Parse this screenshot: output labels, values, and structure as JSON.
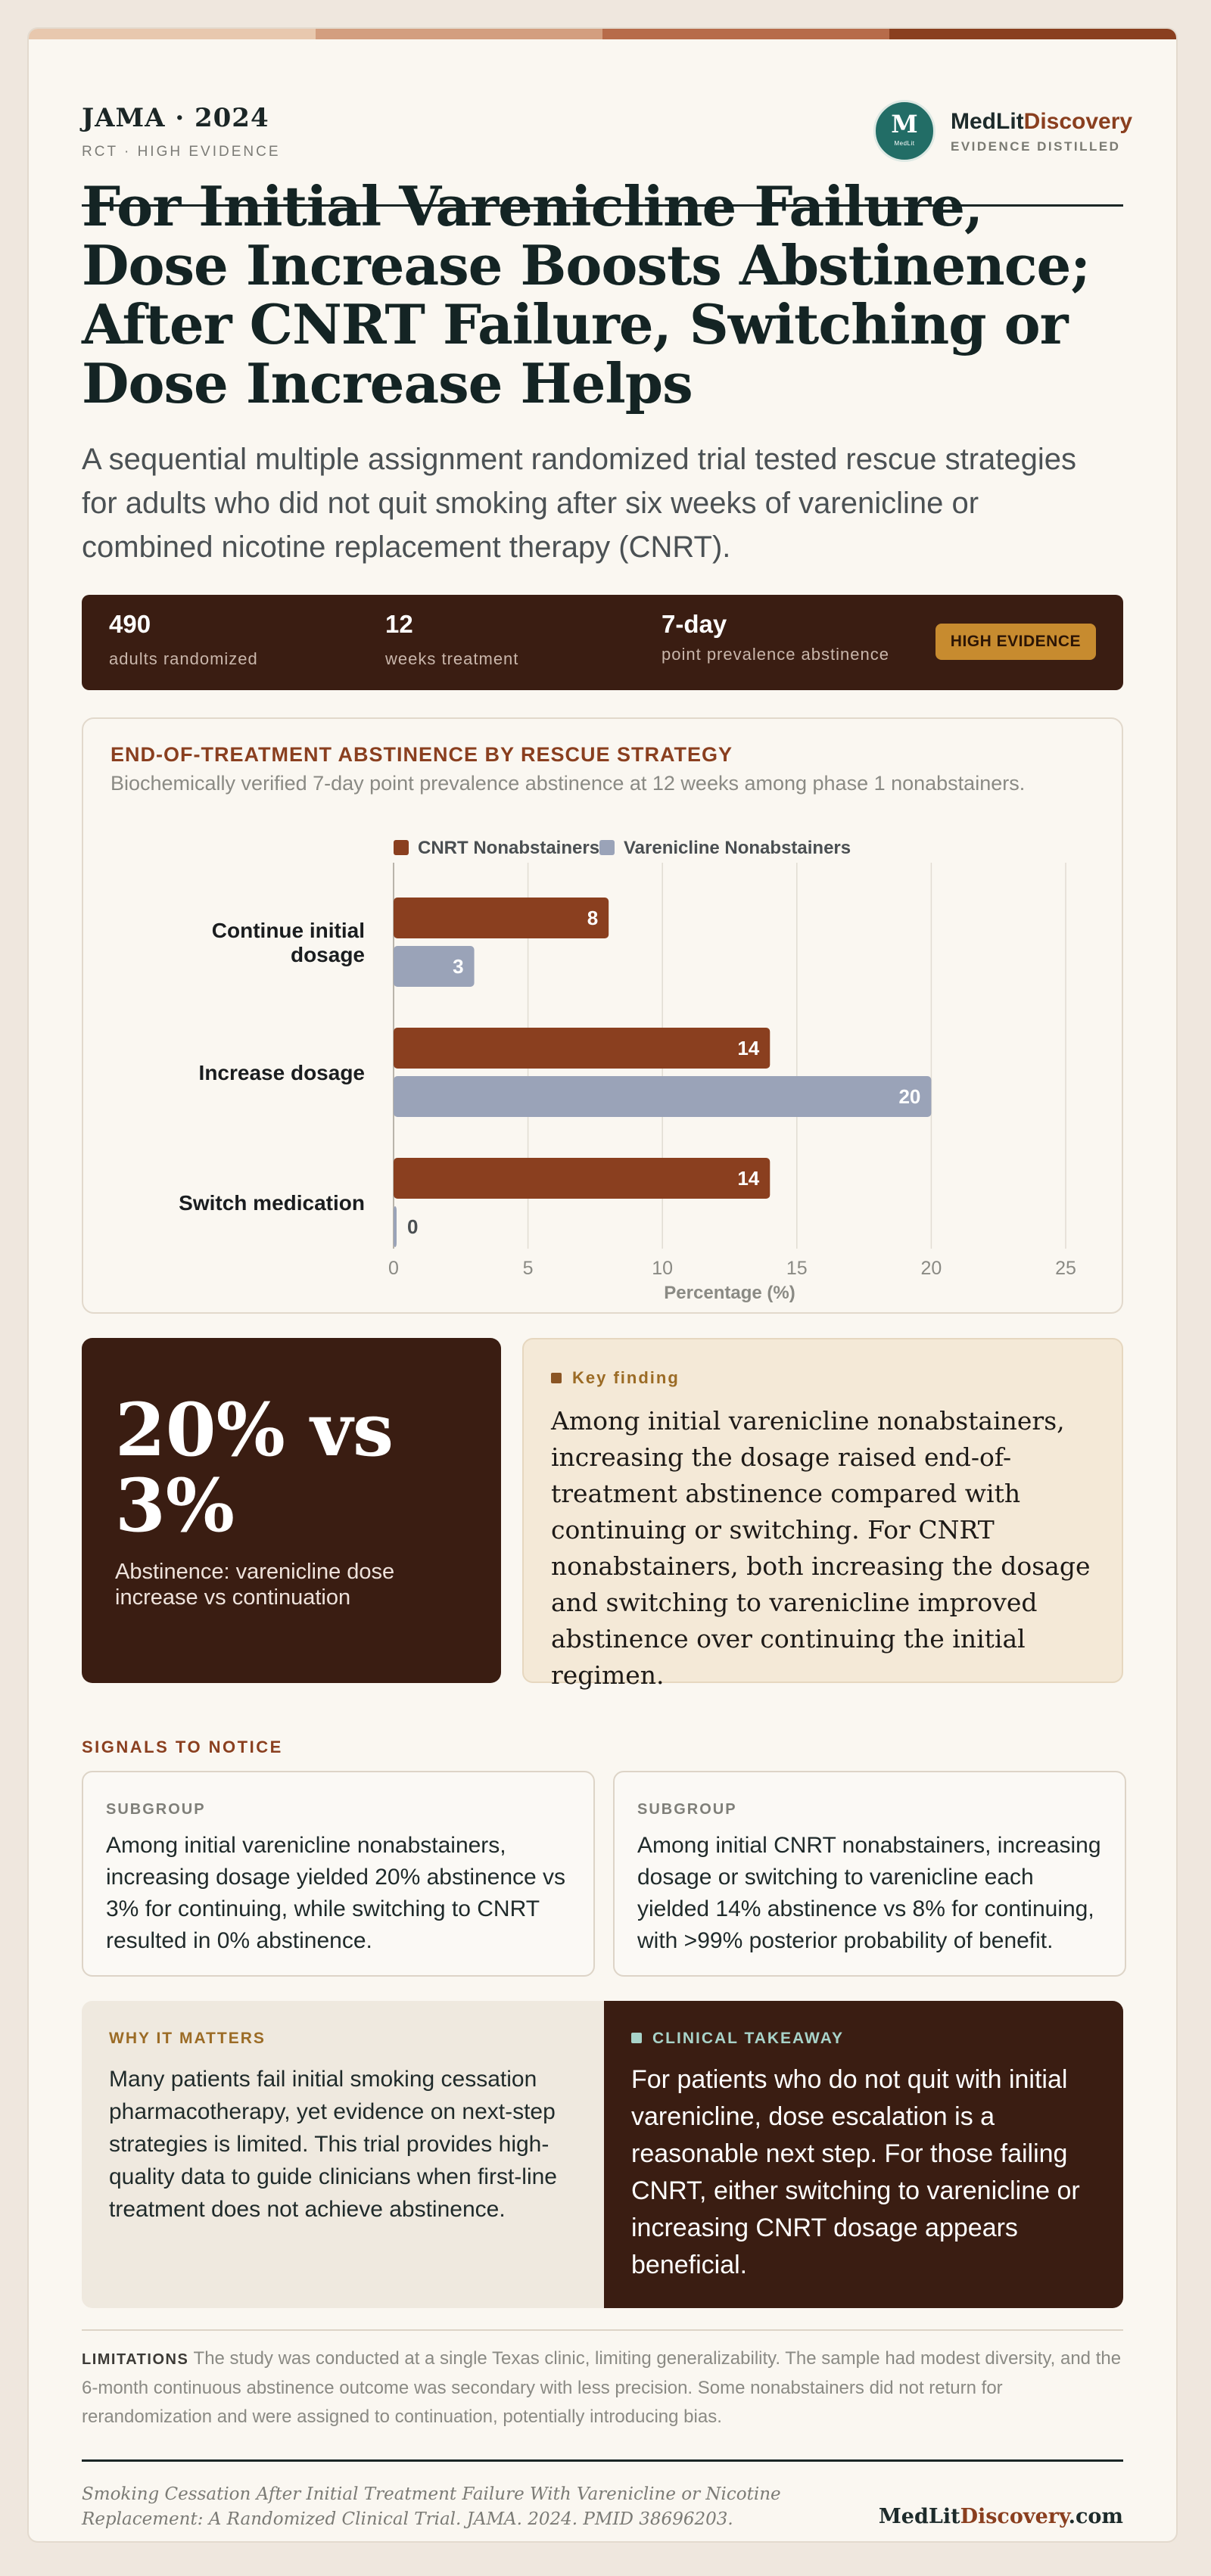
{
  "colors": {
    "stripe": [
      "#e8c8ae",
      "#d39e7f",
      "#b76b4a",
      "#8a3f1f"
    ],
    "cnrt": "#8a3f1f",
    "varenicline": "#9aa3b8",
    "dark": "#3a1d12"
  },
  "header": {
    "journal": "JAMA · 2024",
    "subtitle": "RCT · HIGH EVIDENCE",
    "brand_logo_letter": "M",
    "brand_logo_mini": "MedLit",
    "brand_name_a": "MedLit",
    "brand_name_b": "Discovery",
    "brand_tag": "EVIDENCE DISTILLED"
  },
  "headline": "For Initial Varenicline Failure, Dose Increase Boosts Abstinence; After CNRT Failure, Switching or Dose Increase Helps",
  "lede": "A sequential multiple assignment randomized trial tested rescue strategies for adults who did not quit smoking after six weeks of varenicline or combined nicotine replacement therapy (CNRT).",
  "stats": [
    {
      "value": "490",
      "label": "adults randomized"
    },
    {
      "value": "12",
      "label": "weeks treatment"
    },
    {
      "value": "7-day",
      "label": "point prevalence abstinence"
    }
  ],
  "badge": "HIGH EVIDENCE",
  "chart_card": {
    "title": "END-OF-TREATMENT ABSTINENCE BY RESCUE STRATEGY",
    "subtitle": "Biochemically verified 7-day point prevalence abstinence at 12 weeks among phase 1 nonabstainers."
  },
  "chart_data": {
    "type": "bar",
    "orientation": "horizontal",
    "categories": [
      "Continue initial dosage",
      "Increase dosage",
      "Switch medication"
    ],
    "series": [
      {
        "name": "CNRT Nonabstainers",
        "values": [
          8,
          14,
          14
        ]
      },
      {
        "name": "Varenicline Nonabstainers",
        "values": [
          3,
          20,
          0
        ]
      }
    ],
    "xlabel": "Percentage (%)",
    "xlim": [
      0,
      25
    ],
    "ticks": [
      0,
      5,
      10,
      15,
      20,
      25
    ],
    "grid": true,
    "legend": "top"
  },
  "highlight": {
    "value": "20% vs 3%",
    "caption": "Abstinence: varenicline dose increase vs continuation"
  },
  "key_finding": {
    "label": "Key finding",
    "text": "Among initial varenicline nonabstainers, increasing the dosage raised end-of-treatment abstinence compared with continuing or switching. For CNRT nonabstainers, both increasing the dosage and switching to varenicline improved abstinence over continuing the initial regimen."
  },
  "signals": {
    "heading": "SIGNALS TO NOTICE",
    "items": [
      {
        "label": "SUBGROUP",
        "text": "Among initial varenicline nonabstainers, increasing dosage yielded 20% abstinence vs 3% for continuing, while switching to CNRT resulted in 0% abstinence."
      },
      {
        "label": "SUBGROUP",
        "text": "Among initial CNRT nonabstainers, increasing dosage or switching to varenicline each yielded 14% abstinence vs 8% for continuing, with >99% posterior probability of benefit."
      }
    ]
  },
  "why": {
    "label": "WHY IT MATTERS",
    "text": "Many patients fail initial smoking cessation pharmacotherapy, yet evidence on next-step strategies is limited. This trial provides high-quality data to guide clinicians when first-line treatment does not achieve abstinence."
  },
  "takeaway": {
    "label": "CLINICAL TAKEAWAY",
    "text": "For patients who do not quit with initial varenicline, dose escalation is a reasonable next step. For those failing CNRT, either switching to varenicline or increasing CNRT dosage appears beneficial."
  },
  "limitations": {
    "label": "LIMITATIONS",
    "text": "The study was conducted at a single Texas clinic, limiting generalizability. The sample had modest diversity, and the 6-month continuous abstinence outcome was secondary with less precision. Some nonabstainers did not return for rerandomization and were assigned to continuation, potentially introducing bias."
  },
  "footer": {
    "citation": "Smoking Cessation After Initial Treatment Failure With Varenicline or Nicotine Replacement: A Randomized Clinical Trial. JAMA. 2024. PMID 38696203.",
    "brand_a": "MedLit",
    "brand_b": "Discovery",
    "brand_c": ".com"
  }
}
